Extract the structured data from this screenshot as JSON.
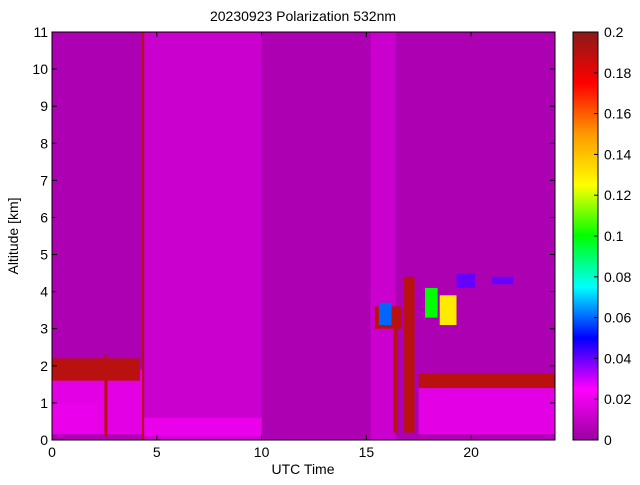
{
  "chart_data": {
    "type": "heatmap",
    "title": "20230923 Polarization 532nm",
    "xlabel": "UTC Time",
    "ylabel": "Altitude [km]",
    "xlim": [
      0,
      24
    ],
    "ylim": [
      0,
      11
    ],
    "x_ticks": [
      0,
      5,
      10,
      15,
      20
    ],
    "y_ticks": [
      0,
      1,
      2,
      3,
      4,
      5,
      6,
      7,
      8,
      9,
      10,
      11
    ],
    "colorbar": {
      "range": [
        0,
        0.2
      ],
      "ticks": [
        0,
        0.02,
        0.04,
        0.06,
        0.08,
        0.1,
        0.12,
        0.14,
        0.16,
        0.18,
        0.2
      ],
      "tick_labels": [
        "0",
        "0.02",
        "0.04",
        "0.06",
        "0.08",
        "0.1",
        "0.12",
        "0.14",
        "0.16",
        "0.18",
        "0.2"
      ],
      "colormap": [
        "#9a00a0",
        "#ff00ff",
        "#0000ff",
        "#00ffff",
        "#00ff00",
        "#ffff00",
        "#ff9900",
        "#ff0000",
        "#8b1a1a"
      ]
    },
    "background_value": 0.005,
    "regions": [
      {
        "x": [
          0.0,
          4.4
        ],
        "y": [
          0.15,
          1.9
        ],
        "value": 0.018
      },
      {
        "x": [
          0.0,
          2.2
        ],
        "y": [
          0.2,
          1.0
        ],
        "value": 0.02
      },
      {
        "x": [
          0.0,
          4.2
        ],
        "y": [
          1.6,
          2.2
        ],
        "value": 0.19
      },
      {
        "x": [
          2.5,
          2.65
        ],
        "y": [
          0.1,
          2.3
        ],
        "value": 0.19
      },
      {
        "x": [
          4.3,
          4.55
        ],
        "y": [
          0.0,
          11.0
        ],
        "value": 0.19
      },
      {
        "x": [
          4.4,
          10.0
        ],
        "y": [
          0.0,
          11.0
        ],
        "value": 0.012
      },
      {
        "x": [
          4.4,
          10.0
        ],
        "y": [
          0.1,
          0.6
        ],
        "value": 0.02
      },
      {
        "x": [
          15.2,
          16.4
        ],
        "y": [
          0.0,
          11.0
        ],
        "value": 0.012
      },
      {
        "x": [
          16.3,
          16.5
        ],
        "y": [
          0.2,
          3.0
        ],
        "value": 0.19
      },
      {
        "x": [
          16.8,
          17.3
        ],
        "y": [
          0.2,
          4.4
        ],
        "value": 0.19
      },
      {
        "x": [
          15.4,
          16.7
        ],
        "y": [
          3.0,
          3.6
        ],
        "value": 0.19
      },
      {
        "x": [
          17.5,
          24.0
        ],
        "y": [
          0.15,
          1.5
        ],
        "value": 0.018
      },
      {
        "x": [
          17.5,
          24.0
        ],
        "y": [
          1.4,
          1.8
        ],
        "value": 0.19
      },
      {
        "x": [
          15.6,
          16.2
        ],
        "y": [
          3.1,
          3.7
        ],
        "value": 0.06
      },
      {
        "x": [
          17.8,
          18.4
        ],
        "y": [
          3.3,
          4.1
        ],
        "value": 0.1
      },
      {
        "x": [
          18.5,
          19.3
        ],
        "y": [
          3.1,
          3.9
        ],
        "value": 0.13
      },
      {
        "x": [
          19.3,
          20.2
        ],
        "y": [
          4.1,
          4.5
        ],
        "value": 0.04
      },
      {
        "x": [
          21.0,
          22.0
        ],
        "y": [
          4.2,
          4.4
        ],
        "value": 0.04
      }
    ]
  }
}
